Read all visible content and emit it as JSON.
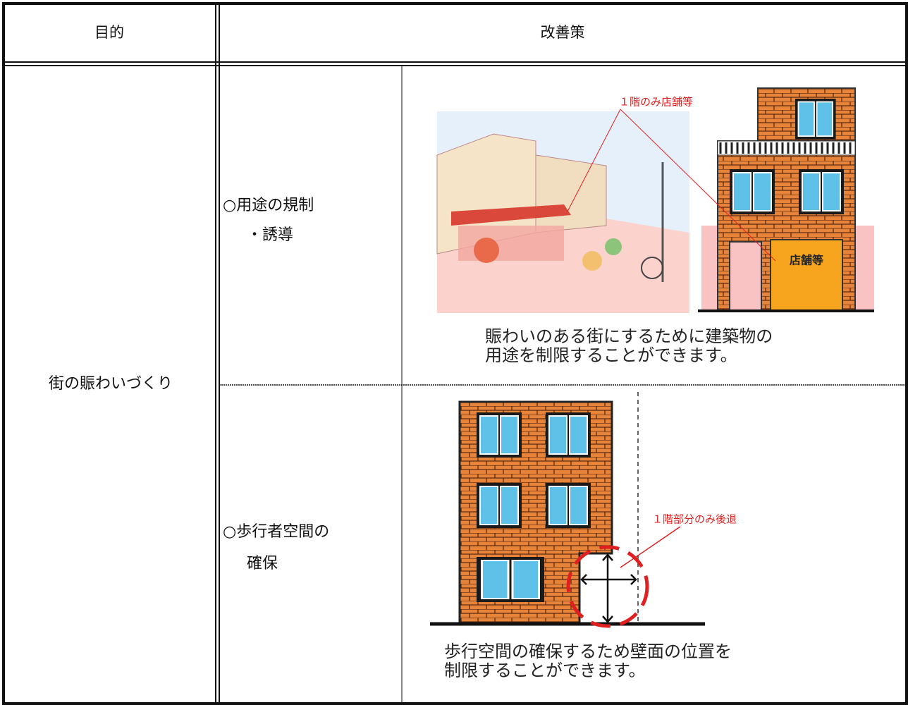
{
  "header": {
    "purpose": "目的",
    "measures": "改善策"
  },
  "purpose": "街の賑わいづくり",
  "measures": [
    {
      "title": "○用途の規制",
      "sub": "・誘導",
      "label": "１階のみ店舗等",
      "sign": "店舗等",
      "caption": [
        "賑わいのある街にするために建築物の",
        "用途を制限することができます。"
      ]
    },
    {
      "title": "○歩行者空間の",
      "sub": "確保",
      "label": "１階部分のみ後退",
      "caption": [
        "歩行空間の確保するため壁面の位置を",
        "制限することができます。"
      ]
    }
  ]
}
